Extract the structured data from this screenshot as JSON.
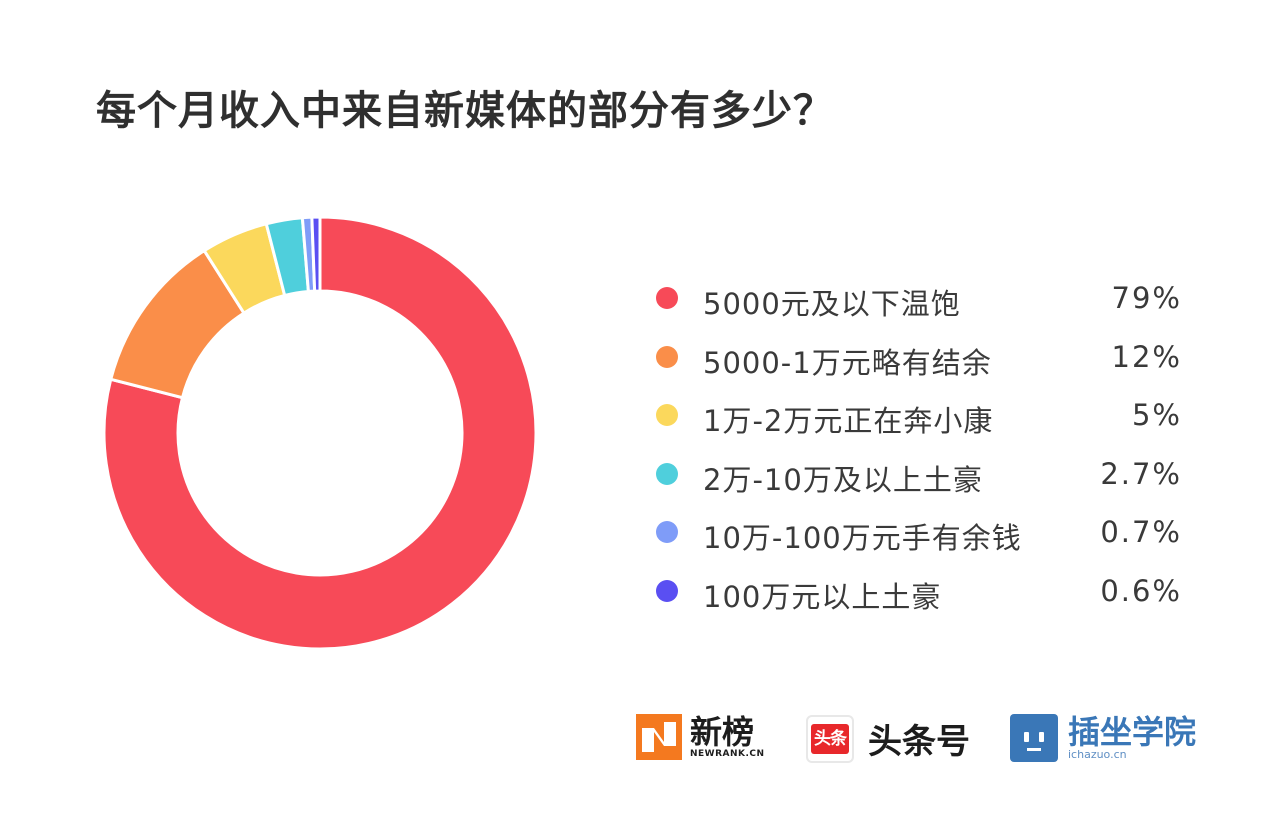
{
  "title": "每个月收入中来自新媒体的部分有多少？",
  "chart_data": {
    "type": "pie",
    "variant": "donut",
    "title": "每个月收入中来自新媒体的部分有多少？",
    "slices": [
      {
        "label": "5000元及以下温饱",
        "value": 79,
        "value_label": "79%",
        "color": "#f74a58"
      },
      {
        "label": "5000-1万元略有结余",
        "value": 12,
        "value_label": "12%",
        "color": "#fa8e49"
      },
      {
        "label": "1万-2万元正在奔小康",
        "value": 5,
        "value_label": "5%",
        "color": "#fbd85c"
      },
      {
        "label": "2万-10万及以上土豪",
        "value": 2.7,
        "value_label": "2.7%",
        "color": "#4fcfdc"
      },
      {
        "label": "10万-100万元手有余钱",
        "value": 0.7,
        "value_label": "0.7%",
        "color": "#7f9cf8"
      },
      {
        "label": "100万元以上土豪",
        "value": 0.6,
        "value_label": "0.6%",
        "color": "#5a4ff2"
      }
    ],
    "legend_position": "right"
  },
  "footer": {
    "newrank": {
      "name": "新榜",
      "sub": "NEWRANK.CN",
      "icon": "newrank-logo"
    },
    "toutiao": {
      "badge": "头条",
      "name": "头条号",
      "icon": "toutiao-logo"
    },
    "chazuo": {
      "name": "插坐学院",
      "sub": "ichazuo.cn",
      "icon": "chazuo-logo"
    }
  }
}
